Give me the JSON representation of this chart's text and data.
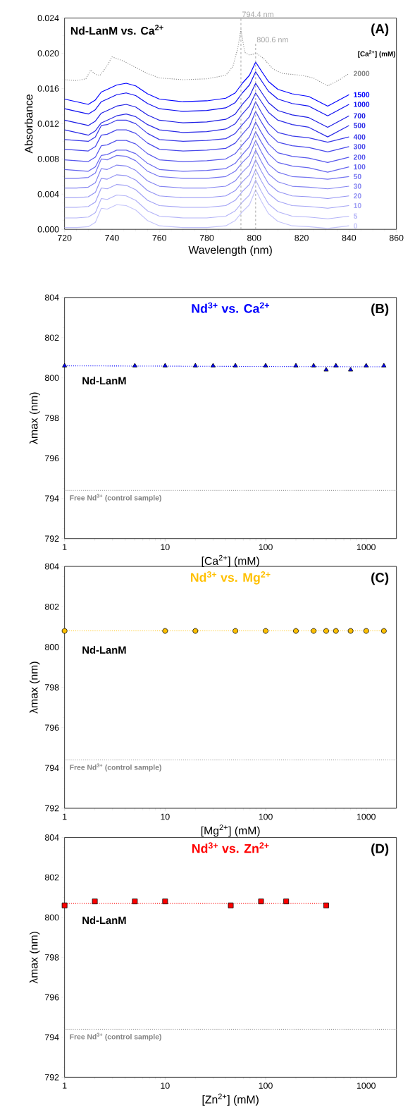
{
  "chart_data": [
    {
      "type": "line",
      "title": "Nd-LanM vs. Ca$^{2+}$",
      "xlabel": "Wavelength (nm)",
      "ylabel": "Absorbance",
      "legend_title": "[Ca$^{2+}$] (mM)",
      "annotations": [
        "(A)"
      ],
      "xlim": [
        720,
        860
      ],
      "xticks": [
        720,
        740,
        760,
        780,
        800,
        820,
        840,
        860
      ],
      "ylim": [
        0,
        0.024
      ],
      "yticks": [
        {
          "value": 0,
          "label": "0.000"
        },
        {
          "value": 0.004,
          "label": "0.004"
        },
        {
          "value": 0.008,
          "label": "0.008"
        },
        {
          "value": 0.012,
          "label": "0.012"
        },
        {
          "value": 0.016,
          "label": "0.016"
        },
        {
          "value": 0.02,
          "label": "0.020"
        },
        {
          "value": 0.024,
          "label": "0.024"
        }
      ],
      "ref_lines": [
        {
          "axis": "x",
          "value": 794.4,
          "label": "794.4 nm",
          "color": "#a6a6a6",
          "line_style": "dashed"
        },
        {
          "axis": "x",
          "value": 800.6,
          "label": "800.6 nm",
          "color": "#a6a6a6",
          "line_style": "dashed"
        }
      ],
      "line_style": "solid",
      "x": [
        720,
        725,
        730,
        733,
        735.5,
        738,
        742,
        746,
        750,
        755,
        760,
        770,
        780,
        788,
        792,
        795,
        798,
        800.6,
        803,
        806,
        810,
        816,
        823,
        831,
        840
      ],
      "series": [
        {
          "name": "0",
          "color": "#c5c5fa",
          "values": [
            0.0002,
            0.0002,
            0.0003,
            0.0008,
            0.0024,
            0.0023,
            0.0028,
            0.0027,
            0.0022,
            0.001,
            0.0004,
            0.0002,
            0.0002,
            0.0004,
            0.001,
            0.002,
            0.0028,
            0.0045,
            0.0032,
            0.0018,
            0.0009,
            0.0004,
            0.0003,
            0.0001,
            0.0004
          ]
        },
        {
          "name": "5",
          "color": "#b3b3f7",
          "values": [
            0.0013,
            0.0013,
            0.0014,
            0.0019,
            0.0035,
            0.0034,
            0.0039,
            0.0038,
            0.0033,
            0.0021,
            0.0015,
            0.0013,
            0.0013,
            0.0015,
            0.0021,
            0.0031,
            0.0039,
            0.0056,
            0.0043,
            0.0029,
            0.002,
            0.0015,
            0.0014,
            0.0012,
            0.0015
          ]
        },
        {
          "name": "10",
          "color": "#a3a3f5",
          "values": [
            0.0025,
            0.0025,
            0.0026,
            0.0031,
            0.0047,
            0.0046,
            0.0051,
            0.005,
            0.0045,
            0.0033,
            0.0027,
            0.0025,
            0.0025,
            0.0027,
            0.0033,
            0.0043,
            0.0051,
            0.0068,
            0.0055,
            0.0041,
            0.0032,
            0.0027,
            0.0026,
            0.0024,
            0.0027
          ]
        },
        {
          "name": "20",
          "color": "#9393f3",
          "values": [
            0.0036,
            0.0036,
            0.0037,
            0.0042,
            0.0058,
            0.0057,
            0.0062,
            0.0061,
            0.0056,
            0.0044,
            0.0038,
            0.0036,
            0.0036,
            0.0038,
            0.0044,
            0.0054,
            0.0062,
            0.0079,
            0.0066,
            0.0052,
            0.0043,
            0.0038,
            0.0037,
            0.0035,
            0.0038
          ]
        },
        {
          "name": "30",
          "color": "#8484f1",
          "values": [
            0.0047,
            0.0047,
            0.0048,
            0.0053,
            0.0069,
            0.0068,
            0.0073,
            0.0072,
            0.0067,
            0.0055,
            0.0049,
            0.0047,
            0.0047,
            0.0049,
            0.0055,
            0.0065,
            0.0073,
            0.009,
            0.0077,
            0.0063,
            0.0054,
            0.0049,
            0.0048,
            0.0046,
            0.0049
          ]
        },
        {
          "name": "50",
          "color": "#7575f0",
          "values": [
            0.0058,
            0.0058,
            0.0059,
            0.0064,
            0.008,
            0.0079,
            0.0084,
            0.0083,
            0.0078,
            0.0066,
            0.006,
            0.0058,
            0.0058,
            0.006,
            0.0066,
            0.0076,
            0.0084,
            0.0101,
            0.0088,
            0.0074,
            0.0065,
            0.006,
            0.0059,
            0.0057,
            0.006
          ]
        },
        {
          "name": "100",
          "color": "#6666ee",
          "values": [
            0.0068,
            0.0067,
            0.0066,
            0.0071,
            0.0084,
            0.0085,
            0.009,
            0.009,
            0.0086,
            0.0075,
            0.0068,
            0.0066,
            0.0067,
            0.0069,
            0.0075,
            0.0085,
            0.0094,
            0.0111,
            0.0099,
            0.0086,
            0.0076,
            0.0072,
            0.007,
            0.0065,
            0.0071
          ]
        },
        {
          "name": "200",
          "color": "#5656ec",
          "values": [
            0.0079,
            0.0078,
            0.0077,
            0.0082,
            0.0095,
            0.0096,
            0.0101,
            0.0101,
            0.0097,
            0.0086,
            0.0079,
            0.0077,
            0.0078,
            0.008,
            0.0086,
            0.0096,
            0.0105,
            0.0122,
            0.011,
            0.0097,
            0.0087,
            0.0083,
            0.0081,
            0.0076,
            0.0082
          ]
        },
        {
          "name": "300",
          "color": "#4848ea",
          "values": [
            0.0091,
            0.009,
            0.0089,
            0.0094,
            0.0107,
            0.0108,
            0.0113,
            0.0113,
            0.0109,
            0.0098,
            0.0091,
            0.0089,
            0.009,
            0.0092,
            0.0098,
            0.0108,
            0.0117,
            0.0134,
            0.0122,
            0.0109,
            0.0099,
            0.0095,
            0.0093,
            0.0088,
            0.0094
          ]
        },
        {
          "name": "400",
          "color": "#3a3ae8",
          "values": [
            0.0102,
            0.0101,
            0.01,
            0.0105,
            0.0118,
            0.0119,
            0.0124,
            0.0124,
            0.012,
            0.0109,
            0.0102,
            0.01,
            0.0101,
            0.0103,
            0.0109,
            0.0119,
            0.0128,
            0.0145,
            0.0133,
            0.012,
            0.011,
            0.0106,
            0.0104,
            0.0099,
            0.0105
          ]
        },
        {
          "name": "500",
          "color": "#2b2be6",
          "values": [
            0.0113,
            0.011,
            0.0107,
            0.0112,
            0.0121,
            0.0124,
            0.0129,
            0.0131,
            0.0128,
            0.0119,
            0.0113,
            0.011,
            0.0111,
            0.0114,
            0.012,
            0.0131,
            0.014,
            0.0155,
            0.0145,
            0.0133,
            0.0124,
            0.0119,
            0.0116,
            0.0105,
            0.0118
          ]
        },
        {
          "name": "700",
          "color": "#1c1ce4",
          "values": [
            0.0124,
            0.0121,
            0.0118,
            0.0123,
            0.0132,
            0.0135,
            0.014,
            0.0142,
            0.0139,
            0.013,
            0.0124,
            0.0121,
            0.0122,
            0.0125,
            0.0131,
            0.0142,
            0.0151,
            0.0166,
            0.0156,
            0.0144,
            0.0135,
            0.013,
            0.0127,
            0.0116,
            0.0129
          ]
        },
        {
          "name": "1000",
          "color": "#0e0ef0",
          "values": [
            0.0137,
            0.0134,
            0.0131,
            0.0136,
            0.0145,
            0.0148,
            0.0153,
            0.0155,
            0.0152,
            0.0143,
            0.0137,
            0.0134,
            0.0135,
            0.0138,
            0.0144,
            0.0155,
            0.0164,
            0.0179,
            0.0169,
            0.0157,
            0.0148,
            0.0143,
            0.014,
            0.0129,
            0.0142
          ]
        },
        {
          "name": "1500",
          "color": "#0000ff",
          "values": [
            0.0148,
            0.0145,
            0.0142,
            0.0147,
            0.0156,
            0.0159,
            0.0164,
            0.0166,
            0.0163,
            0.0154,
            0.0148,
            0.0145,
            0.0146,
            0.0149,
            0.0155,
            0.0166,
            0.0175,
            0.019,
            0.018,
            0.0168,
            0.0159,
            0.0154,
            0.0151,
            0.014,
            0.0153
          ]
        },
        {
          "name": "2000",
          "color": "#808080",
          "line_style": "dotted",
          "x": [
            720,
            725,
            729,
            731,
            733,
            735,
            738,
            740,
            745,
            750,
            755,
            760,
            770,
            780,
            788,
            791,
            793,
            794.4,
            796,
            798,
            801,
            804,
            808,
            812,
            820,
            825,
            831,
            836,
            840
          ],
          "values": [
            0.017,
            0.0169,
            0.0171,
            0.0181,
            0.0176,
            0.0175,
            0.0186,
            0.0196,
            0.0191,
            0.0184,
            0.0177,
            0.0172,
            0.017,
            0.0171,
            0.0175,
            0.0185,
            0.0205,
            0.0227,
            0.0201,
            0.0198,
            0.02,
            0.0194,
            0.0182,
            0.0177,
            0.0175,
            0.0172,
            0.0163,
            0.017,
            0.0177
          ]
        }
      ]
    },
    {
      "type": "scatter",
      "title": "Nd$^{3+}$ vs. Ca$^{2+}$",
      "xlabel": "[Ca$^{2+}$] (mM)",
      "ylabel": "λmax (nm)",
      "annotations": [
        "(B)",
        "Nd-LanM"
      ],
      "log": "x",
      "xlim": [
        1,
        2000
      ],
      "xticks": [
        1,
        10,
        100,
        1000
      ],
      "ylim": [
        792,
        804
      ],
      "yticks": [
        792,
        794,
        796,
        798,
        800,
        802,
        804
      ],
      "ref_lines": [
        {
          "axis": "y",
          "value": 794.4,
          "label": "Free Nd$^{3+}$  (control sample)",
          "color": "#808080",
          "line_style": "dotted"
        }
      ],
      "series": [
        {
          "type": "scatter",
          "marker": "triangle",
          "color": "#0000ff",
          "x": [
            1,
            5,
            10,
            20,
            30,
            50,
            100,
            200,
            300,
            400,
            500,
            700,
            1000,
            1500
          ],
          "values": [
            800.6,
            800.6,
            800.6,
            800.6,
            800.6,
            800.6,
            800.6,
            800.6,
            800.6,
            800.4,
            800.6,
            800.4,
            800.6,
            800.6
          ]
        },
        {
          "type": "line",
          "line_style": "dotted",
          "color": "#0000ff",
          "x": [
            1,
            1500
          ],
          "values": [
            800.6,
            800.55
          ]
        }
      ]
    },
    {
      "type": "scatter",
      "title": "Nd$^{3+}$ vs. Mg$^{2+}$",
      "xlabel": "[Mg$^{2+}$] (mM)",
      "ylabel": "λmax (nm)",
      "annotations": [
        "(C)",
        "Nd-LanM"
      ],
      "log": "x",
      "xlim": [
        1,
        2000
      ],
      "xticks": [
        1,
        10,
        100,
        1000
      ],
      "ylim": [
        792,
        804
      ],
      "yticks": [
        792,
        794,
        796,
        798,
        800,
        802,
        804
      ],
      "ref_lines": [
        {
          "axis": "y",
          "value": 794.4,
          "label": "Free Nd$^{3+}$  (control sample)",
          "color": "#808080",
          "line_style": "dotted"
        }
      ],
      "series": [
        {
          "type": "scatter",
          "marker": "circle",
          "color": "#ffc000",
          "x": [
            1,
            10,
            20,
            50,
            100,
            200,
            300,
            400,
            500,
            700,
            1000,
            1500
          ],
          "values": [
            800.8,
            800.8,
            800.8,
            800.8,
            800.8,
            800.8,
            800.8,
            800.8,
            800.8,
            800.8,
            800.8,
            800.8
          ]
        },
        {
          "type": "line",
          "line_style": "dotted",
          "color": "#ffc000",
          "x": [
            1,
            1500
          ],
          "values": [
            800.8,
            800.8
          ]
        }
      ]
    },
    {
      "type": "scatter",
      "title": "Nd$^{3+}$ vs. Zn$^{2+}$",
      "xlabel": "[Zn$^{2+}$] (mM)",
      "ylabel": "λmax (nm)",
      "annotations": [
        "(D)",
        "Nd-LanM"
      ],
      "log": "x",
      "xlim": [
        1,
        2000
      ],
      "xticks": [
        1,
        10,
        100,
        1000
      ],
      "ylim": [
        792,
        804
      ],
      "yticks": [
        792,
        794,
        796,
        798,
        800,
        802,
        804
      ],
      "ref_lines": [
        {
          "axis": "y",
          "value": 794.4,
          "label": "Free Nd$^{3+}$  (control sample)",
          "color": "#808080",
          "line_style": "dotted"
        }
      ],
      "series": [
        {
          "type": "scatter",
          "marker": "square",
          "color": "#ff0000",
          "x": [
            1,
            2,
            5,
            10,
            45,
            90,
            160,
            400
          ],
          "values": [
            800.6,
            800.8,
            800.8,
            800.8,
            800.6,
            800.8,
            800.8,
            800.6
          ]
        },
        {
          "type": "line",
          "line_style": "dotted",
          "color": "#ff0000",
          "x": [
            1,
            400
          ],
          "values": [
            800.7,
            800.7
          ]
        }
      ]
    }
  ]
}
